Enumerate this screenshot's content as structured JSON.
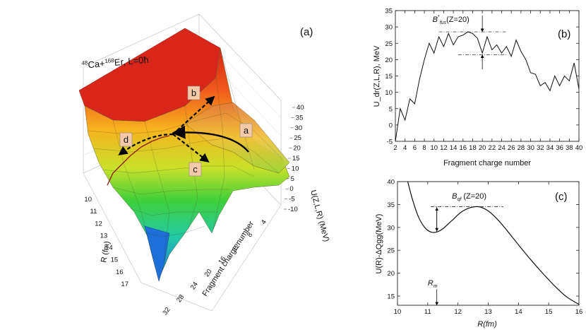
{
  "panel_a": {
    "panel_label": "(a)",
    "reaction_title_sup": "48",
    "reaction_title_mid": "Ca+",
    "reaction_title_sup2": "168",
    "reaction_title_end": "Er, L=0ħ",
    "x_axis_label": "Fragment charge number",
    "y_axis_label": "R (fm)",
    "z_axis_label": "U(Z,L,R) (MeV)",
    "x_ticks": [
      "4",
      "8",
      "12",
      "16",
      "20",
      "24",
      "28",
      "32"
    ],
    "y_ticks": [
      "10",
      "11",
      "12",
      "13",
      "14",
      "15",
      "16",
      "17"
    ],
    "z_ticks": [
      "-10",
      "-5",
      "0",
      "5",
      "10",
      "15",
      "20",
      "25",
      "30",
      "35",
      "40"
    ],
    "path_tags": [
      "a",
      "b",
      "c",
      "d"
    ],
    "colors": {
      "high": "#e8261a",
      "mid": "#f4d21e",
      "low": "#3fcf3a",
      "deep": "#1f8ed8"
    }
  },
  "chart_data": [
    {
      "type": "line",
      "panel": "(b)",
      "title": "",
      "xlabel": "Fragment charge number",
      "ylabel": "U_dr(Z,L,R), MeV",
      "xlim": [
        2,
        40
      ],
      "ylim": [
        -5,
        35
      ],
      "x_ticks": [
        2,
        4,
        6,
        8,
        10,
        12,
        14,
        16,
        18,
        20,
        22,
        24,
        26,
        28,
        30,
        32,
        34,
        36,
        38,
        40
      ],
      "y_ticks": [
        -5,
        0,
        5,
        10,
        15,
        20,
        25,
        30,
        35
      ],
      "x": [
        2,
        3,
        4,
        5,
        6,
        7,
        8,
        9,
        10,
        11,
        12,
        13,
        14,
        15,
        16,
        17,
        18,
        19,
        20,
        21,
        22,
        23,
        24,
        25,
        26,
        27,
        28,
        29,
        30,
        31,
        32,
        33,
        34,
        35,
        36,
        37,
        38,
        39,
        40
      ],
      "series": [
        {
          "name": "U_dr",
          "values": [
            -5,
            5,
            1.5,
            8,
            6.5,
            14,
            20,
            25,
            22,
            27,
            24,
            28,
            24.5,
            27,
            27.5,
            28.5,
            28,
            26.5,
            22,
            27,
            23,
            24.5,
            22,
            24,
            21,
            26,
            22.5,
            20,
            16,
            15.5,
            12,
            13,
            10.5,
            15,
            12,
            15,
            13.5,
            19,
            11
          ]
        }
      ],
      "annotation": {
        "label": "B*fus(Z=20)",
        "label_main": "B",
        "label_sup": "*",
        "label_sub": "fus",
        "label_end": "(Z=20)",
        "x": 20,
        "y_top": 28.5,
        "y_bottom": 21.5
      }
    },
    {
      "type": "line",
      "panel": "(c)",
      "title": "",
      "xlabel": "R(fm)",
      "ylabel": "U(R)-ΔQgg(MeV)",
      "xlim": [
        10,
        16
      ],
      "ylim": [
        13,
        40
      ],
      "x_ticks": [
        10,
        11,
        12,
        13,
        14,
        15,
        16
      ],
      "y_ticks": [
        15,
        20,
        25,
        30,
        35,
        40
      ],
      "x": [
        10.3,
        10.5,
        10.7,
        10.9,
        11.1,
        11.3,
        11.5,
        11.8,
        12.1,
        12.4,
        12.7,
        13.0,
        13.3,
        13.6,
        14.0,
        14.4,
        14.8,
        15.2,
        15.6,
        16.0
      ],
      "series": [
        {
          "name": "U(R)",
          "values": [
            41,
            36,
            32.2,
            30,
            29,
            29,
            29.7,
            31.5,
            33.3,
            34.3,
            34.5,
            33.6,
            31.8,
            29.5,
            26.2,
            23,
            20,
            17.2,
            14.8,
            13.2
          ]
        }
      ],
      "annotations": [
        {
          "label": "Bqf (Z=20)",
          "label_main": "B",
          "label_sub": "qf",
          "label_end": " (Z=20)",
          "x": 11.3,
          "y_top": 34.5,
          "y_bottom": 29
        },
        {
          "label": "Rm",
          "label_main": "R",
          "label_sub": "m",
          "x": 11.3
        }
      ]
    }
  ]
}
